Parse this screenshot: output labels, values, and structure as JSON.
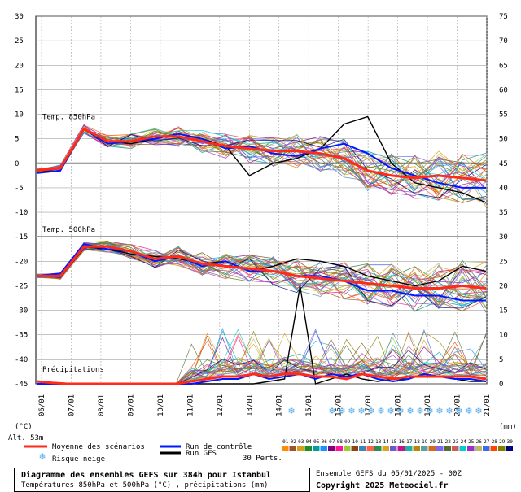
{
  "chart_data": {
    "type": "line",
    "x_dates": [
      "06/01",
      "07/01",
      "08/01",
      "09/01",
      "10/01",
      "11/01",
      "12/01",
      "13/01",
      "14/01",
      "15/01",
      "16/01",
      "17/01",
      "18/01",
      "19/01",
      "20/01",
      "21/01"
    ],
    "left_axis_label": "(°C)",
    "right_axis_label": "(mm)",
    "left_ticks": [
      30,
      25,
      20,
      15,
      10,
      5,
      0,
      -5,
      -10,
      -15,
      -20,
      -25,
      -30,
      -35,
      -40,
      -45
    ],
    "right_ticks": [
      75,
      70,
      65,
      60,
      55,
      50,
      45,
      40,
      35,
      30,
      25,
      20,
      15,
      10,
      5,
      0
    ],
    "ylim_left": [
      -45,
      30
    ],
    "ylim_right": [
      0,
      75
    ],
    "panel_labels": {
      "t850": "Temp. 850hPa",
      "t500": "Temp. 500hPa",
      "precip": "Précipitations"
    },
    "altitude_label": "Alt. 53m",
    "snow_risk_label": "Risque neige",
    "n_perturbations": 30,
    "perts_label": "30 Perts.",
    "pert_numbers": [
      "01",
      "02",
      "03",
      "04",
      "05",
      "06",
      "07",
      "08",
      "09",
      "10",
      "11",
      "12",
      "13",
      "14",
      "15",
      "16",
      "17",
      "18",
      "19",
      "20",
      "21",
      "22",
      "23",
      "24",
      "25",
      "26",
      "27",
      "28",
      "29",
      "30"
    ],
    "pert_colors": [
      "#ff8c00",
      "#a0522d",
      "#d4a017",
      "#228b22",
      "#00a0a0",
      "#1e90ff",
      "#800080",
      "#ff1493",
      "#9acd32",
      "#8b4513",
      "#4682b4",
      "#ff6347",
      "#2e8b57",
      "#daa520",
      "#6a5acd",
      "#c71585",
      "#20b2aa",
      "#b8860b",
      "#5f9ea0",
      "#d2691e",
      "#7b68ee",
      "#556b2f",
      "#cd5c5c",
      "#00ced1",
      "#9932cc",
      "#bdb76b",
      "#4169e1",
      "#ff4500",
      "#808000",
      "#000080"
    ],
    "legend": {
      "mean": "Moyenne des scénarios",
      "control": "Run de contrôle",
      "gfs": "Run GFS"
    },
    "colors": {
      "mean": "#ff2a1a",
      "control": "#0018ff",
      "gfs": "#000000",
      "zero_line": "#808080",
      "grid": "#a0a0a0"
    },
    "t850": {
      "mean": [
        -1.5,
        -1,
        7,
        4.5,
        4.5,
        5.5,
        5.5,
        4.5,
        3.5,
        3,
        2.5,
        2.5,
        2,
        1,
        -1.5,
        -2.5,
        -3,
        -2.5,
        -3,
        -3.5
      ],
      "control": [
        -2,
        -1.5,
        7,
        4,
        4.5,
        5,
        6,
        5,
        3,
        3.5,
        2,
        1.5,
        3,
        4,
        2,
        -1,
        -2.5,
        -4,
        -5,
        -5
      ],
      "gfs": [
        -2,
        -1,
        7,
        4.5,
        4,
        5,
        6,
        5,
        3.5,
        -2.5,
        0,
        1,
        3,
        8,
        9.5,
        0,
        -4,
        -5,
        -6,
        -8
      ]
    },
    "t500": {
      "mean": [
        -23,
        -23,
        -17,
        -17,
        -18,
        -19.5,
        -19,
        -20.5,
        -21,
        -21.5,
        -22,
        -23,
        -23.5,
        -24,
        -24.5,
        -25,
        -25.5,
        -25.5,
        -25,
        -25.5
      ],
      "control": [
        -23,
        -22.5,
        -16.5,
        -17.5,
        -18,
        -20,
        -19,
        -21,
        -20,
        -22,
        -22,
        -23,
        -23,
        -24,
        -26,
        -26,
        -27,
        -27,
        -28,
        -28
      ],
      "gfs": [
        -23,
        -23,
        -17,
        -17.5,
        -18.5,
        -19,
        -19.5,
        -20.5,
        -20,
        -22,
        -21,
        -19.5,
        -20,
        -21,
        -23,
        -24,
        -25,
        -24,
        -21,
        -22
      ]
    },
    "precip_mm": {
      "mean": [
        0.5,
        0.2,
        0,
        0,
        0,
        0,
        0,
        0,
        0,
        0,
        0.5,
        1,
        1.5,
        1.5,
        2,
        1.5,
        2,
        2,
        1.5,
        1.5,
        1,
        2,
        1.5,
        1,
        1.5,
        1.5,
        1.5,
        1.5,
        1.5,
        1
      ],
      "control": [
        0,
        0,
        0,
        0,
        0,
        0,
        0,
        0,
        0,
        0,
        0,
        0.5,
        1,
        1,
        2,
        1,
        1.5,
        2,
        1,
        2,
        1.5,
        2,
        1,
        0.5,
        1,
        2,
        1.5,
        1,
        1,
        0.5
      ],
      "gfs": [
        0,
        0,
        0,
        0,
        0,
        0,
        0,
        0,
        0,
        0,
        0,
        0,
        0,
        0,
        0,
        0.5,
        1,
        20,
        0,
        1,
        2,
        1,
        0.5,
        1,
        1,
        2,
        1.5,
        1,
        0.5,
        0.5
      ]
    }
  },
  "footer": {
    "title": "Diagramme des ensembles GEFS sur 384h pour Istanbul",
    "subtitle": "Températures 850hPa et 500hPa (°C) , précipitations (mm)",
    "run_info": "Ensemble GEFS du 05/01/2025 - 00Z",
    "copyright": "Copyright 2025 Meteociel.fr"
  }
}
